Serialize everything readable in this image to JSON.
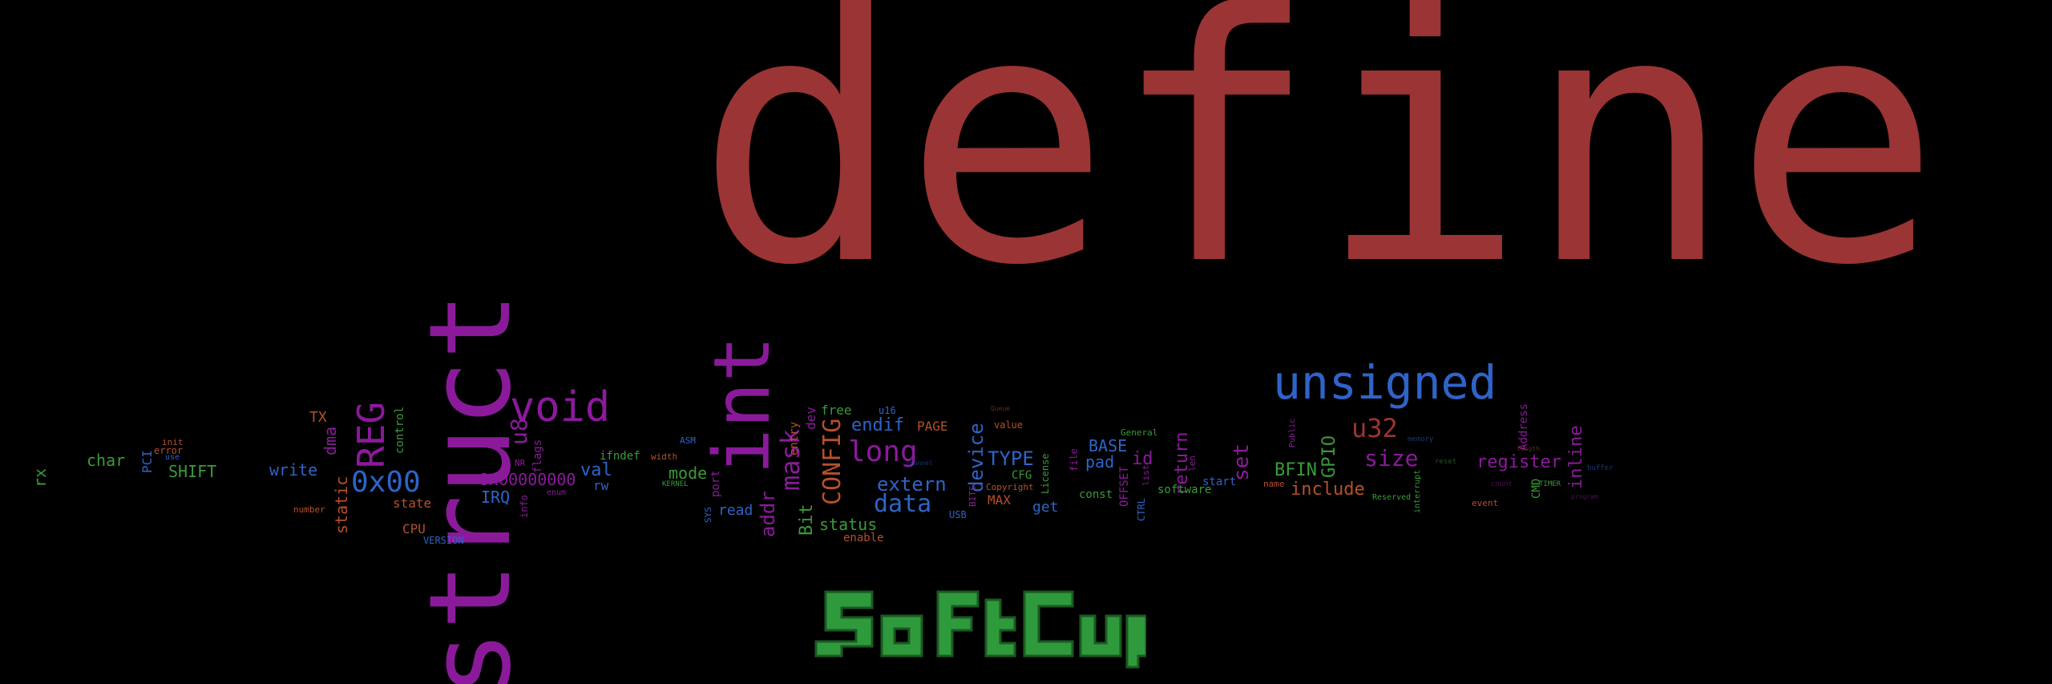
{
  "colors": {
    "background": "#000000",
    "red": "#9b3434",
    "purple": "#8b1a9b",
    "blue": "#2e64c8",
    "green": "#3a9a3a",
    "orange": "#b5502a"
  },
  "words": {
    "define": "define",
    "struct": "struct",
    "int": "int",
    "unsigned": "unsigned",
    "void": "void",
    "reg": "REG",
    "hex00": "0x00",
    "u8": "u8",
    "mask": "mask",
    "config": "CONFIG",
    "long": "long",
    "endif": "endif",
    "extern": "extern",
    "data": "data",
    "device": "device",
    "type": "TYPE",
    "u32": "u32",
    "size": "size",
    "register": "register",
    "include": "include",
    "bfin": "BFIN",
    "gpio": "GPIO",
    "inline": "inline",
    "set": "set",
    "return": "return",
    "id": "id",
    "base": "BASE",
    "pad": "pad",
    "status": "status",
    "bit": "Bit",
    "addr": "addr",
    "read": "read",
    "port": "port",
    "mode": "mode",
    "val": "val",
    "rw": "rw",
    "ifndef": "ifndef",
    "irq": "IRQ",
    "hexlong": "0x00000000",
    "state": "state",
    "cpu": "CPU",
    "version": "VERSION",
    "static": "static",
    "dma": "dma",
    "control": "control",
    "write": "write",
    "shift": "SHIFT",
    "char": "char",
    "pci": "PCI",
    "rx": "rx",
    "tx": "TX",
    "free": "free",
    "dev": "dev",
    "u16": "u16",
    "page": "PAGE",
    "entry": "entry",
    "flags": "flags",
    "max": "MAX",
    "get": "get",
    "cfg": "CFG",
    "const": "const",
    "offset": "OFFSET",
    "software": "software",
    "start": "start",
    "name": "name",
    "cmd": "CMD",
    "address": "Address",
    "enable": "enable",
    "usb": "USB",
    "value": "value",
    "copyright": "Copyright",
    "license": "License",
    "general": "General",
    "list": "list",
    "ctrl": "CTRL",
    "file": "file",
    "len": "len",
    "error": "error",
    "init": "init",
    "use": "use",
    "info": "info",
    "enum": "enum",
    "asm": "ASM",
    "width": "width",
    "kernel": "KERNEL",
    "sys": "SYS",
    "bits": "BITS",
    "number": "number",
    "reserved": "Reserved",
    "event": "event",
    "timer": "TIMER",
    "interrupt": "interrupt",
    "nr": "NR",
    "public": "Public",
    "buffer": "buffer",
    "count": "count",
    "reset": "reset",
    "memory": "memory",
    "length": "length",
    "program": "program",
    "channel": "channel",
    "queue": "Queue"
  },
  "logo": {
    "label": "SoftCup"
  }
}
